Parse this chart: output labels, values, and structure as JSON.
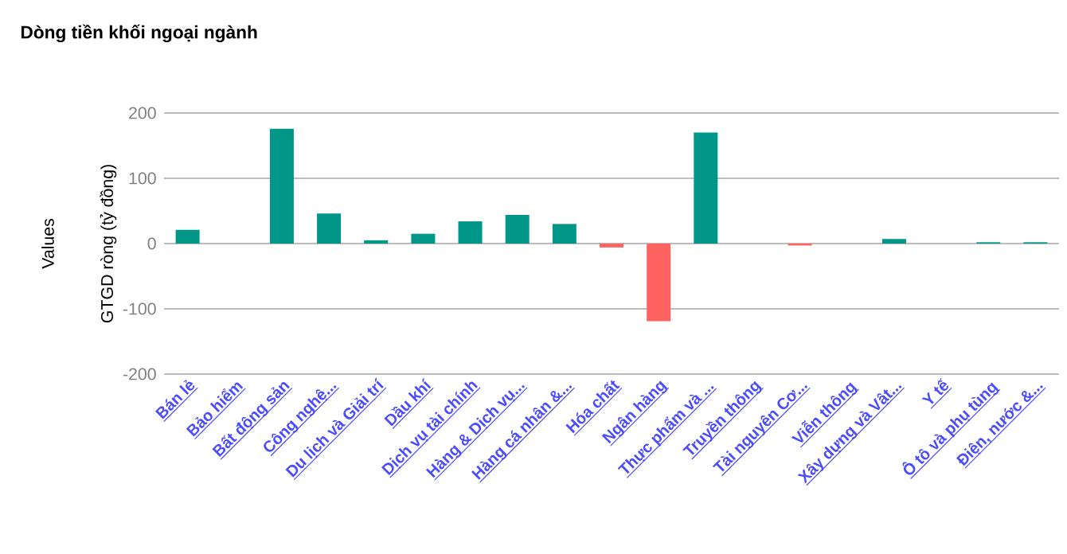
{
  "chart_data": {
    "type": "bar",
    "title": "Dòng tiền khối ngoại ngành",
    "ylabel": "GTGD ròng (tỷ đồng)",
    "annotations": [
      "Values"
    ],
    "categories": [
      "Bán lẻ",
      "Bảo hiểm",
      "Bất động sản",
      "Công nghệ...",
      "Du lịch và Giải trí",
      "Dầu khí",
      "Dịch vụ tài chính",
      "Hàng & Dịch vụ...",
      "Hàng cá nhân &...",
      "Hóa chất",
      "Ngân hàng",
      "Thực phẩm và ...",
      "Truyền thông",
      "Tài nguyên Cơ...",
      "Viễn thông",
      "Xây dựng và Vật...",
      "Y tế",
      "Ô tô và phụ tùng",
      "Điện, nước &..."
    ],
    "values": [
      21,
      0,
      176,
      46,
      5,
      15,
      34,
      44,
      30,
      -6,
      -119,
      170,
      0,
      -3,
      0,
      7,
      0,
      2,
      2
    ],
    "colors": [
      "#009688",
      "#009688",
      "#009688",
      "#009688",
      "#009688",
      "#009688",
      "#009688",
      "#009688",
      "#009688",
      "#ff6361",
      "#ff6361",
      "#009688",
      "#009688",
      "#ff6361",
      "#009688",
      "#009688",
      "#009688",
      "#009688",
      "#009688"
    ],
    "ylim": [
      -200,
      200
    ],
    "yticks": [
      -200,
      -100,
      0,
      100,
      200
    ],
    "grid": "y"
  }
}
